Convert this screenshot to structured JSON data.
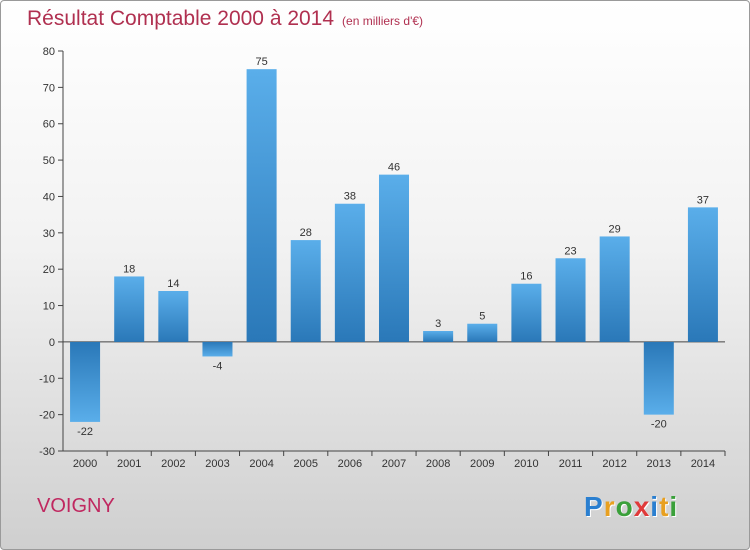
{
  "header": {
    "title": "Résultat Comptable 2000 à 2014",
    "subtitle": "(en milliers d'€)"
  },
  "footer": {
    "town": "VOIGNY",
    "logo_letters": [
      "P",
      "r",
      "o",
      "x",
      "i",
      "t",
      "i"
    ],
    "logo_colors": [
      "#2a7fd0",
      "#e8a020",
      "#3aa03a",
      "#e03a3a",
      "#2a7fd0",
      "#e8a020",
      "#3aa03a"
    ]
  },
  "chart_data": {
    "type": "bar",
    "title": "Résultat Comptable 2000 à 2014",
    "xlabel": "",
    "ylabel": "",
    "categories": [
      "2000",
      "2001",
      "2002",
      "2003",
      "2004",
      "2005",
      "2006",
      "2007",
      "2008",
      "2009",
      "2010",
      "2011",
      "2012",
      "2013",
      "2014"
    ],
    "values": [
      -22,
      18,
      14,
      -4,
      75,
      28,
      38,
      46,
      3,
      5,
      16,
      23,
      29,
      -20,
      37
    ],
    "ylim": [
      -30,
      80
    ],
    "yticks": [
      -30,
      -20,
      -10,
      0,
      10,
      20,
      30,
      40,
      50,
      60,
      70,
      80
    ],
    "grid": false,
    "colors": {
      "bar_light": "#5aaeea",
      "bar_dark": "#2a78b8",
      "axis": "#444444"
    }
  }
}
